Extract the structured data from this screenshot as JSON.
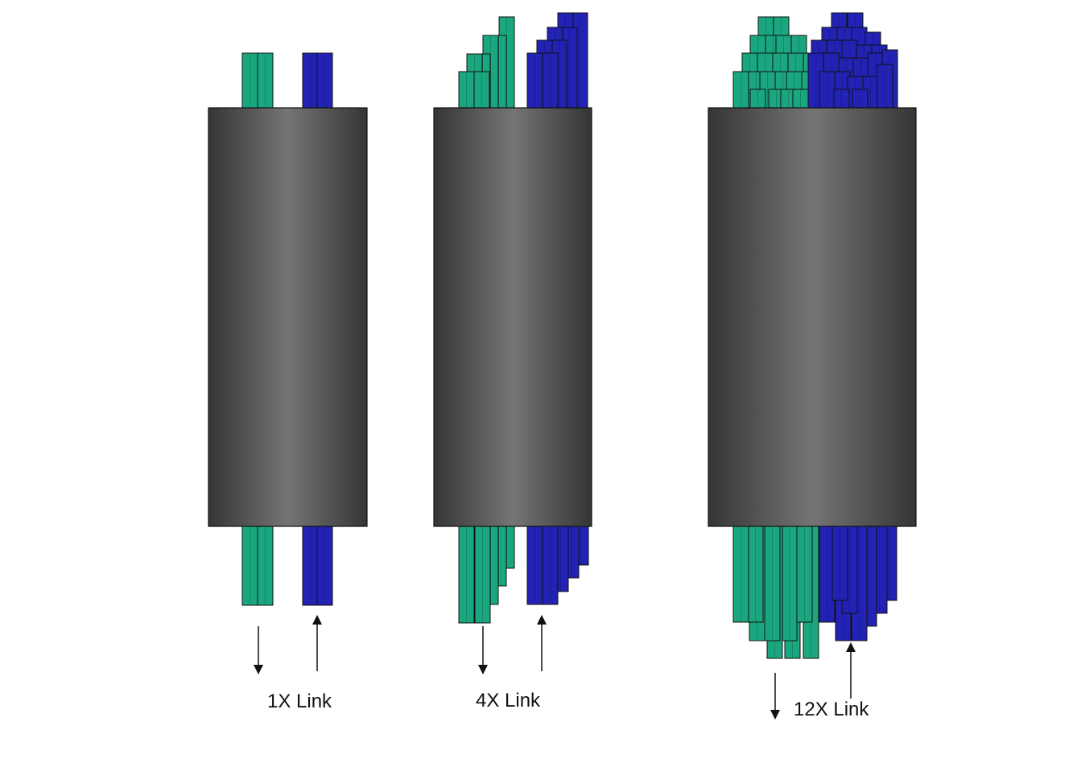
{
  "colors": {
    "tx": "#1aa77f",
    "rx": "#2222b4",
    "sleeve_edge": "#3a3a3a",
    "sleeve_mid": "#737373",
    "outline": "#111111"
  },
  "links": [
    {
      "label": "1X Link",
      "lanes_per_direction": 1
    },
    {
      "label": "4X Link",
      "lanes_per_direction": 4
    },
    {
      "label": "12X Link",
      "lanes_per_direction": 12
    }
  ]
}
